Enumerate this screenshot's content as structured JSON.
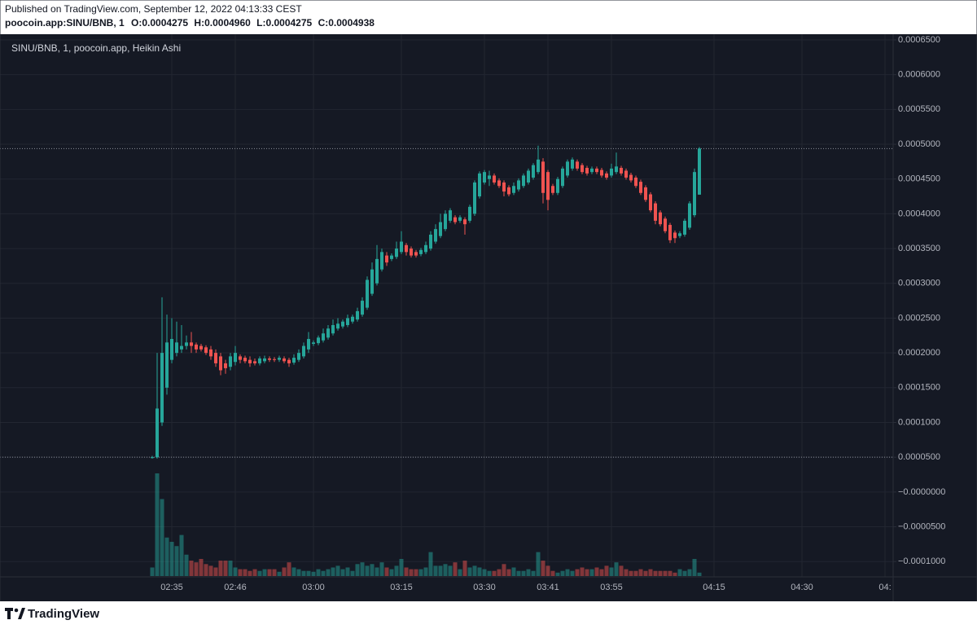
{
  "header": {
    "published": "Published on TradingView.com, September 12, 2022 04:13:33 CEST",
    "symbol": "poocoin.app:SINU/BNB, 1",
    "ohlc": [
      "O:0.0004275",
      "H:0.0004960",
      "L:0.0004275",
      "C:0.0004938"
    ]
  },
  "footer": {
    "brand": "TradingView"
  },
  "chart_data": {
    "type": "candlestick",
    "legend": "SINU/BNB, 1, poocoin.app, Heikin Ashi",
    "up_color": "#26a69a",
    "down_color": "#ef5350",
    "grid": true,
    "ylim": [
      -0.000122,
      0.000657
    ],
    "yticks": [
      {
        "value": 0.00065,
        "label": "0.0006500"
      },
      {
        "value": 0.0006,
        "label": "0.0006000"
      },
      {
        "value": 0.00055,
        "label": "0.0005500"
      },
      {
        "value": 0.0005,
        "label": "0.0005000"
      },
      {
        "value": 0.00045,
        "label": "0.0004500"
      },
      {
        "value": 0.0004,
        "label": "0.0004000"
      },
      {
        "value": 0.00035,
        "label": "0.0003500"
      },
      {
        "value": 0.0003,
        "label": "0.0003000"
      },
      {
        "value": 0.00025,
        "label": "0.0002500"
      },
      {
        "value": 0.0002,
        "label": "0.0002000"
      },
      {
        "value": 0.00015,
        "label": "0.0001500"
      },
      {
        "value": 0.0001,
        "label": "0.0001000"
      },
      {
        "value": 5e-05,
        "label": "0.0000500"
      },
      {
        "value": 0,
        "label": "−0.0000000"
      },
      {
        "value": -5e-05,
        "label": "−0.0000500"
      },
      {
        "value": -0.0001,
        "label": "−0.0001000"
      }
    ],
    "price_lines": [
      0.0004938,
      5e-05
    ],
    "categories": [
      null,
      null,
      null,
      null,
      "02:35",
      null,
      null,
      null,
      null,
      null,
      null,
      null,
      null,
      null,
      null,
      null,
      null,
      "02:46",
      null,
      null,
      null,
      null,
      null,
      null,
      null,
      null,
      null,
      null,
      null,
      null,
      null,
      null,
      null,
      "03:00",
      null,
      null,
      null,
      null,
      null,
      null,
      null,
      null,
      null,
      null,
      null,
      null,
      null,
      null,
      null,
      null,
      null,
      "03:15",
      null,
      null,
      null,
      null,
      null,
      null,
      null,
      null,
      null,
      null,
      null,
      null,
      null,
      null,
      null,
      null,
      "03:30",
      null,
      null,
      null,
      null,
      null,
      null,
      null,
      null,
      null,
      null,
      null,
      null,
      "03:41",
      null,
      null,
      null,
      null,
      null,
      null,
      null,
      null,
      null,
      null,
      null,
      null,
      "03:55",
      null,
      null,
      null,
      null,
      null,
      null,
      null,
      null,
      null,
      null,
      null,
      null,
      null,
      null,
      null,
      null,
      null,
      null,
      null,
      null,
      "04:15",
      null,
      null,
      null,
      null,
      null,
      null,
      null,
      null,
      null,
      null,
      null,
      null,
      null,
      null,
      null,
      null,
      null,
      "04:30",
      null,
      null,
      null,
      null,
      null,
      null,
      null,
      null,
      null,
      null,
      null,
      null,
      null,
      null,
      null,
      null,
      "04:",
      null
    ],
    "open": [
      5e-05,
      5e-05,
      0.0001,
      0.00015,
      0.00019,
      0.0002,
      0.000205,
      0.00021,
      0.000215,
      0.000212,
      0.00021,
      0.000208,
      0.000205,
      0.0002,
      0.000195,
      0.000185,
      0.00018,
      0.000187,
      0.000195,
      0.000193,
      0.00019,
      0.000188,
      0.000185,
      0.000188,
      0.000192,
      0.000191,
      0.00019,
      0.000192,
      0.00019,
      0.000186,
      0.00019,
      0.000195,
      0.000205,
      0.000213,
      0.000214,
      0.000218,
      0.000222,
      0.000228,
      0.000235,
      0.000238,
      0.00024,
      0.000245,
      0.000248,
      0.000255,
      0.000265,
      0.000285,
      0.0003,
      0.00032,
      0.00034,
      0.000335,
      0.000338,
      0.000345,
      0.000355,
      0.00035,
      0.000345,
      0.000342,
      0.000345,
      0.00035,
      0.00036,
      0.000368,
      0.000378,
      0.00039,
      0.000395,
      0.00039,
      0.000392,
      0.00039,
      0.0004,
      0.000425,
      0.000445,
      0.00045,
      0.000455,
      0.000448,
      0.000445,
      0.000438,
      0.00043,
      0.000435,
      0.00044,
      0.000445,
      0.000452,
      0.00046,
      0.000475,
      0.00046,
      0.00044,
      0.00043,
      0.00044,
      0.000455,
      0.000465,
      0.000475,
      0.00047,
      0.000466,
      0.00046,
      0.000465,
      0.000463,
      0.000458,
      0.000455,
      0.00046,
      0.000466,
      0.000462,
      0.000456,
      0.000452,
      0.000446,
      0.000438,
      0.000428,
      0.000415,
      0.000402,
      0.000393,
      0.000384,
      0.000373,
      0.000368,
      0.00037,
      0.00038,
      0.000398,
      0.0004275,
      null,
      null,
      null,
      null,
      null,
      null,
      null,
      null,
      null,
      null,
      null,
      null,
      null,
      null,
      null,
      null,
      null,
      null,
      null,
      null,
      null,
      null,
      null,
      null,
      null,
      null,
      null,
      null,
      null,
      null,
      null,
      null,
      null,
      null,
      null,
      null,
      null,
      null,
      null
    ],
    "high": [
      5.2e-05,
      0.0002,
      0.00028,
      0.000255,
      0.00025,
      0.000245,
      0.00024,
      0.000225,
      0.00023,
      0.000215,
      0.000213,
      0.000211,
      0.00021,
      0.000205,
      0.0002,
      0.00019,
      0.0002,
      0.00021,
      0.000198,
      0.000196,
      0.000195,
      0.000192,
      0.000195,
      0.000196,
      0.000195,
      0.000194,
      0.000196,
      0.000195,
      0.000193,
      0.000198,
      0.000205,
      0.000215,
      0.00023,
      0.000218,
      0.000225,
      0.000235,
      0.00024,
      0.000248,
      0.00025,
      0.000248,
      0.000255,
      0.000255,
      0.000265,
      0.00028,
      0.00031,
      0.00033,
      0.000355,
      0.00035,
      0.000345,
      0.000343,
      0.00036,
      0.000375,
      0.000358,
      0.000353,
      0.000348,
      0.000351,
      0.00036,
      0.000375,
      0.000385,
      0.0004,
      0.000405,
      0.000408,
      0.000398,
      0.000398,
      0.000395,
      0.000413,
      0.000448,
      0.000461,
      0.000463,
      0.000462,
      0.000458,
      0.000451,
      0.000448,
      0.000441,
      0.000445,
      0.000451,
      0.000458,
      0.000465,
      0.000473,
      0.000498,
      0.00048,
      0.000463,
      0.000443,
      0.000453,
      0.000468,
      0.000478,
      0.000481,
      0.000478,
      0.000473,
      0.000469,
      0.000468,
      0.000468,
      0.000466,
      0.000461,
      0.000472,
      0.000488,
      0.000469,
      0.000465,
      0.000459,
      0.000455,
      0.000449,
      0.000441,
      0.000431,
      0.000418,
      0.000405,
      0.000396,
      0.000387,
      0.000376,
      0.000375,
      0.000393,
      0.000418,
      0.000465,
      0.000496,
      null,
      null,
      null,
      null,
      null,
      null,
      null,
      null,
      null,
      null,
      null,
      null,
      null,
      null,
      null,
      null,
      null,
      null,
      null,
      null,
      null,
      null,
      null,
      null,
      null,
      null,
      null,
      null,
      null,
      null,
      null,
      null,
      null,
      null,
      null,
      null,
      null,
      null,
      null
    ],
    "low": [
      4.8e-05,
      4.8e-05,
      9.5e-05,
      0.00014,
      0.000185,
      0.000195,
      0.0002,
      0.000205,
      0.0002,
      0.0002,
      0.000202,
      0.000197,
      0.00019,
      0.00018,
      0.000168,
      0.00017,
      0.000175,
      0.000182,
      0.000185,
      0.000185,
      0.00018,
      0.000182,
      0.000182,
      0.000185,
      0.000187,
      0.000187,
      0.000187,
      0.000185,
      0.00018,
      0.000183,
      0.000187,
      0.000192,
      0.0002,
      0.00021,
      0.000211,
      0.000215,
      0.000219,
      0.000225,
      0.000232,
      0.000235,
      0.000237,
      0.000242,
      0.000245,
      0.000252,
      0.000262,
      0.000282,
      0.000297,
      0.000317,
      0.000325,
      0.000332,
      0.000335,
      0.000342,
      0.00034,
      0.000337,
      0.000337,
      0.000339,
      0.000342,
      0.000347,
      0.000357,
      0.000365,
      0.000375,
      0.000387,
      0.000385,
      0.000387,
      0.00037,
      0.000387,
      0.000397,
      0.000422,
      0.000442,
      0.00044,
      0.000442,
      0.000437,
      0.000425,
      0.000425,
      0.000427,
      0.000432,
      0.000437,
      0.000442,
      0.000449,
      0.000457,
      0.000415,
      0.000405,
      0.000427,
      0.000427,
      0.000437,
      0.000452,
      0.000462,
      0.000462,
      0.000457,
      0.000455,
      0.000457,
      0.000457,
      0.000452,
      0.000449,
      0.000452,
      0.000457,
      0.000455,
      0.000449,
      0.000445,
      0.000437,
      0.000427,
      0.000417,
      0.000402,
      0.000385,
      0.000382,
      0.000372,
      0.000358,
      0.000358,
      0.000365,
      0.000367,
      0.000377,
      0.000395,
      0.0004275,
      null,
      null,
      null,
      null,
      null,
      null,
      null,
      null,
      null,
      null,
      null,
      null,
      null,
      null,
      null,
      null,
      null,
      null,
      null,
      null,
      null,
      null,
      null,
      null,
      null,
      null,
      null,
      null,
      null,
      null,
      null,
      null,
      null,
      null,
      null,
      null,
      null,
      null,
      null
    ],
    "close": [
      5e-05,
      0.00012,
      0.0002,
      0.000215,
      0.00022,
      0.000215,
      0.00021,
      0.000215,
      0.00021,
      0.000205,
      0.000205,
      0.0002,
      0.000195,
      0.000185,
      0.000175,
      0.000178,
      0.000195,
      0.0002,
      0.00019,
      0.000188,
      0.000185,
      0.000185,
      0.000192,
      0.000192,
      0.00019,
      0.00019,
      0.000193,
      0.000188,
      0.000185,
      0.000193,
      0.0002,
      0.00021,
      0.00022,
      0.000215,
      0.000222,
      0.000228,
      0.000235,
      0.00024,
      0.000242,
      0.000245,
      0.00025,
      0.000252,
      0.00026,
      0.000275,
      0.000305,
      0.00032,
      0.000335,
      0.000345,
      0.00033,
      0.00034,
      0.00035,
      0.00036,
      0.000345,
      0.00034,
      0.00034,
      0.000348,
      0.000355,
      0.00037,
      0.000378,
      0.000388,
      0.0004,
      0.000405,
      0.000388,
      0.000395,
      0.000385,
      0.00041,
      0.000445,
      0.000458,
      0.00046,
      0.000455,
      0.000445,
      0.00044,
      0.000432,
      0.000428,
      0.00044,
      0.000448,
      0.000455,
      0.000462,
      0.00047,
      0.000478,
      0.00043,
      0.00042,
      0.00043,
      0.00045,
      0.000465,
      0.000475,
      0.000478,
      0.000465,
      0.00046,
      0.000458,
      0.000465,
      0.00046,
      0.000455,
      0.000452,
      0.000465,
      0.000468,
      0.000458,
      0.000452,
      0.000448,
      0.00044,
      0.00043,
      0.00042,
      0.000405,
      0.00039,
      0.000385,
      0.000375,
      0.000362,
      0.000365,
      0.000372,
      0.00039,
      0.000415,
      0.00046,
      0.0004938,
      null,
      null,
      null,
      null,
      null,
      null,
      null,
      null,
      null,
      null,
      null,
      null,
      null,
      null,
      null,
      null,
      null,
      null,
      null,
      null,
      null,
      null,
      null,
      null,
      null,
      null,
      null,
      null,
      null,
      null,
      null,
      null,
      null,
      null,
      null,
      null,
      null,
      null,
      null
    ],
    "volume": [
      10,
      120,
      90,
      45,
      40,
      35,
      48,
      25,
      18,
      16,
      20,
      14,
      12,
      10,
      18,
      18,
      18,
      10,
      8,
      8,
      6,
      8,
      6,
      8,
      8,
      8,
      5,
      10,
      16,
      10,
      8,
      6,
      6,
      5,
      8,
      6,
      8,
      10,
      12,
      8,
      10,
      6,
      14,
      16,
      12,
      14,
      10,
      16,
      10,
      8,
      12,
      20,
      10,
      8,
      8,
      8,
      10,
      28,
      12,
      12,
      14,
      12,
      16,
      8,
      18,
      10,
      12,
      10,
      8,
      6,
      6,
      8,
      14,
      8,
      10,
      6,
      6,
      8,
      6,
      28,
      18,
      12,
      6,
      4,
      6,
      8,
      6,
      8,
      10,
      8,
      8,
      10,
      8,
      12,
      10,
      16,
      12,
      8,
      6,
      6,
      8,
      6,
      8,
      6,
      6,
      6,
      6,
      4,
      8,
      6,
      8,
      20,
      4,
      null,
      null,
      null,
      null,
      null,
      null,
      null,
      null,
      null,
      null,
      null,
      null,
      null,
      null,
      null,
      null,
      null,
      null,
      null,
      null,
      null,
      null,
      null,
      null,
      null,
      null,
      null,
      null,
      null,
      null,
      null,
      null,
      null,
      null,
      null,
      null,
      null,
      null,
      null
    ]
  }
}
